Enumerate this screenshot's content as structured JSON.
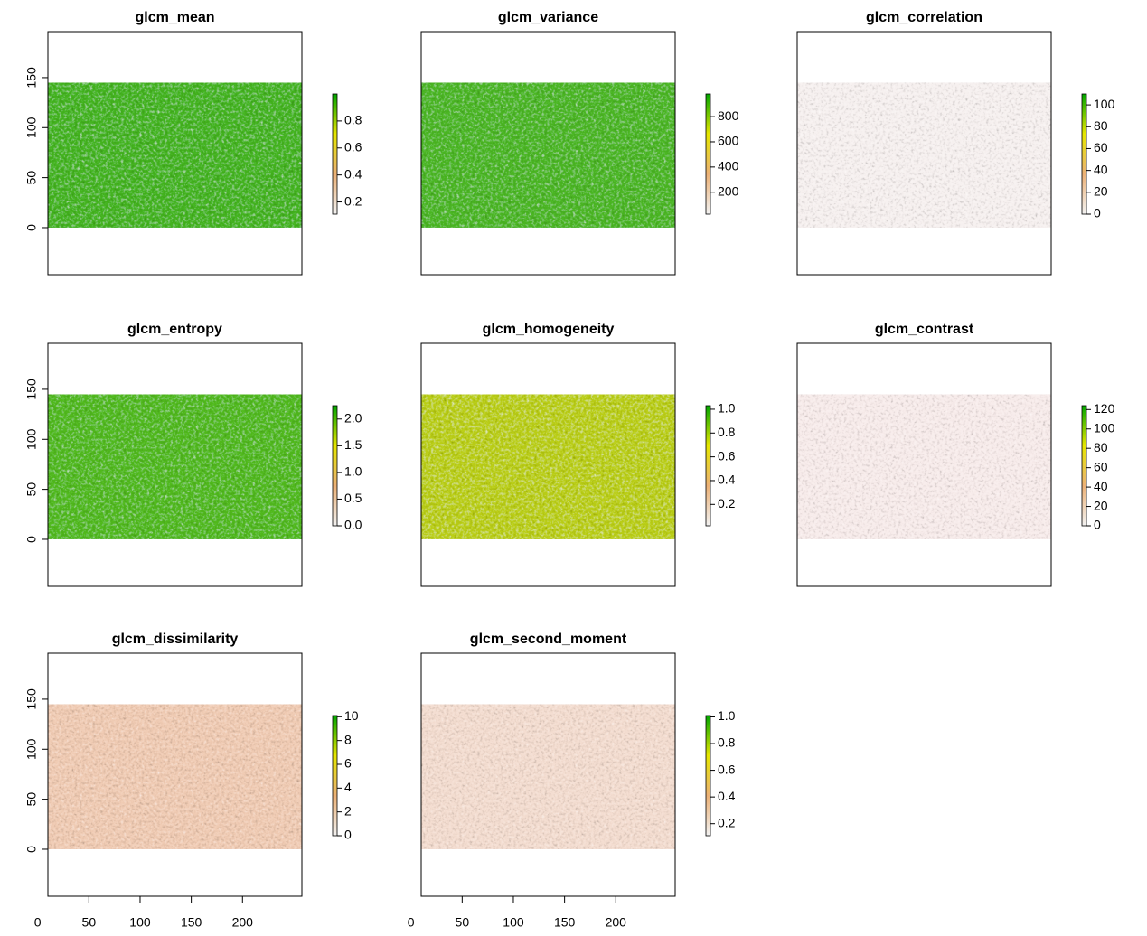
{
  "chart_data": [
    {
      "type": "raster",
      "title": "glcm_mean",
      "raster_color": "#45b620",
      "raster_y": [
        0,
        145
      ],
      "xlim": [
        10,
        258
      ],
      "ylim": [
        -47,
        196
      ],
      "yticks": [
        0,
        50,
        100,
        150
      ],
      "zlim": [
        0.11,
        1.0
      ],
      "zticks": [
        0.2,
        0.4,
        0.6,
        0.8
      ],
      "colors": [
        "#F2F2F2",
        "#ECB176",
        "#E6E600",
        "#00A600"
      ]
    },
    {
      "type": "raster",
      "title": "glcm_variance",
      "raster_color": "#4cb824",
      "raster_y": [
        0,
        145
      ],
      "xlim": [
        10,
        258
      ],
      "ylim": [
        -47,
        196
      ],
      "zlim": [
        26,
        980
      ],
      "zticks": [
        200,
        400,
        600,
        800
      ],
      "colors": [
        "#F2F2F2",
        "#ECB176",
        "#E6E600",
        "#00A600"
      ]
    },
    {
      "type": "raster",
      "title": "glcm_correlation",
      "raster_color": "#f6f0ef",
      "raster_y": [
        0,
        145
      ],
      "xlim": [
        10,
        258
      ],
      "ylim": [
        -47,
        196
      ],
      "zlim": [
        0,
        110
      ],
      "zticks": [
        0,
        20,
        40,
        60,
        80,
        100
      ],
      "colors": [
        "#F2F2F2",
        "#ECB176",
        "#E6E600",
        "#00A600"
      ]
    },
    {
      "type": "raster",
      "title": "glcm_entropy",
      "raster_color": "#52bb1e",
      "raster_y": [
        0,
        145
      ],
      "xlim": [
        10,
        258
      ],
      "ylim": [
        -47,
        196
      ],
      "yticks": [
        0,
        50,
        100,
        150
      ],
      "zlim": [
        0,
        2.25
      ],
      "zticks": [
        {
          "value": 0,
          "label": "0.0"
        },
        0.5,
        {
          "value": 1,
          "label": "1.0"
        },
        1.5,
        {
          "value": 2,
          "label": "2.0"
        }
      ],
      "colors": [
        "#F2F2F2",
        "#ECB176",
        "#E6E600",
        "#00A600"
      ]
    },
    {
      "type": "raster",
      "title": "glcm_homogeneity",
      "raster_color": "#bcd014",
      "raster_y": [
        0,
        145
      ],
      "xlim": [
        10,
        258
      ],
      "ylim": [
        -47,
        196
      ],
      "zlim": [
        0.02,
        1.03
      ],
      "zticks": [
        0.2,
        0.4,
        0.6,
        0.8,
        {
          "value": 1,
          "label": "1.0"
        }
      ],
      "colors": [
        "#F2F2F2",
        "#ECB176",
        "#E6E600",
        "#00A600"
      ]
    },
    {
      "type": "raster",
      "title": "glcm_contrast",
      "raster_color": "#f7ebea",
      "raster_y": [
        0,
        145
      ],
      "xlim": [
        10,
        258
      ],
      "ylim": [
        -47,
        196
      ],
      "zlim": [
        0,
        124
      ],
      "zticks": [
        0,
        20,
        40,
        60,
        80,
        100,
        120
      ],
      "colors": [
        "#F2F2F2",
        "#ECB176",
        "#E6E600",
        "#00A600"
      ]
    },
    {
      "type": "raster",
      "title": "glcm_dissimilarity",
      "raster_color": "#f0cbb3",
      "raster_y": [
        0,
        145
      ],
      "xlim": [
        10,
        258
      ],
      "ylim": [
        -47,
        196
      ],
      "xticks": [
        0,
        50,
        100,
        150,
        200
      ],
      "yticks": [
        0,
        50,
        100,
        150
      ],
      "zlim": [
        0,
        10.1
      ],
      "zticks": [
        0,
        2,
        4,
        6,
        8,
        10
      ],
      "colors": [
        "#F2F2F2",
        "#ECB176",
        "#E6E600",
        "#00A600"
      ]
    },
    {
      "type": "raster",
      "title": "glcm_second_moment",
      "raster_color": "#f3dccf",
      "raster_y": [
        0,
        145
      ],
      "xlim": [
        10,
        258
      ],
      "ylim": [
        -47,
        196
      ],
      "xticks": [
        0,
        50,
        100,
        150,
        200
      ],
      "zlim": [
        0.11,
        1.01
      ],
      "zticks": [
        0.2,
        0.4,
        0.6,
        0.8,
        {
          "value": 1,
          "label": "1.0"
        }
      ],
      "colors": [
        "#F2F2F2",
        "#ECB176",
        "#E6E600",
        "#00A600"
      ]
    }
  ]
}
